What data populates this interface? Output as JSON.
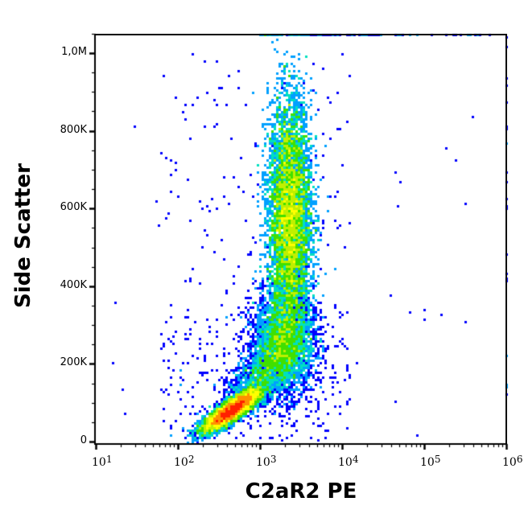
{
  "chart_data": {
    "type": "scatter",
    "subtype": "flow-cytometry density dot plot (pseudocolor)",
    "title": "",
    "xlabel": "C2aR2 PE",
    "ylabel": "Side Scatter",
    "x_scale": "log",
    "y_scale": "linear",
    "xlim": [
      10,
      1000000
    ],
    "ylim": [
      0,
      1050000
    ],
    "x_ticks": [
      {
        "base": "10",
        "exp": "1",
        "value": 10
      },
      {
        "base": "10",
        "exp": "2",
        "value": 100
      },
      {
        "base": "10",
        "exp": "3",
        "value": 1000
      },
      {
        "base": "10",
        "exp": "4",
        "value": 10000
      },
      {
        "base": "10",
        "exp": "5",
        "value": 100000
      },
      {
        "base": "10",
        "exp": "6",
        "value": 1000000
      }
    ],
    "y_ticks": [
      {
        "label": "0",
        "value": 0
      },
      {
        "label": "200K",
        "value": 200000
      },
      {
        "label": "400K",
        "value": 400000
      },
      {
        "label": "600K",
        "value": 600000
      },
      {
        "label": "800K",
        "value": 800000
      },
      {
        "label": "1,0M",
        "value": 1000000
      }
    ],
    "grid": false,
    "legend": null,
    "colormap": [
      "#0000ff",
      "#00a0ff",
      "#00e0c0",
      "#40e000",
      "#c0f000",
      "#ffff00",
      "#ff9000",
      "#ff2000"
    ],
    "populations": [
      {
        "name": "low-SSC C2aR2-dim cluster",
        "x_center": 450,
        "y_center": 80000,
        "x_range": [
          150,
          1000
        ],
        "y_range": [
          20000,
          160000
        ],
        "peak_color": "#ff2000"
      },
      {
        "name": "high-SSC C2aR2-positive column",
        "x_center": 2300,
        "y_center": 580000,
        "x_range": [
          1200,
          5000
        ],
        "y_range": [
          150000,
          1050000
        ],
        "peak_color": "#c0f000"
      },
      {
        "name": "intermediate-SSC tail",
        "x_center": 2000,
        "y_center": 250000,
        "x_range": [
          700,
          6000
        ],
        "y_range": [
          120000,
          400000
        ],
        "peak_color": "#00e0c0"
      }
    ]
  }
}
